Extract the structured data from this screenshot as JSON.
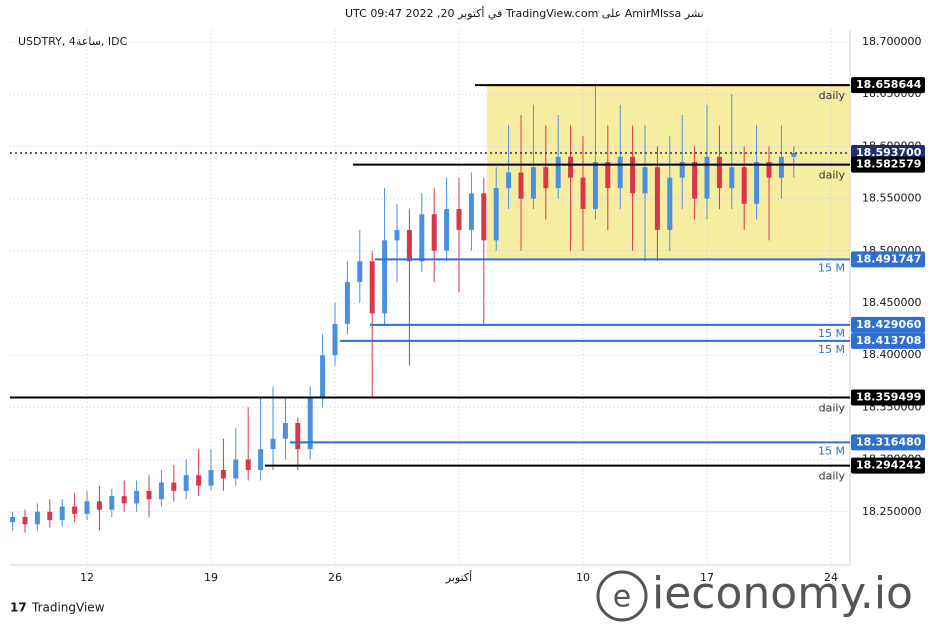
{
  "header": "نشر AmirMlssa على TradingView.com في أكتوبر 20, 2022 09:47 UTC",
  "symbol": "USDTRY, 4ساعة, IDC",
  "footer": "TradingView",
  "watermark": "ieconomy.io",
  "chart_data": {
    "type": "candlestick",
    "categories": [
      null,
      null,
      null,
      null,
      null,
      null,
      "12",
      null,
      null,
      null,
      null,
      null,
      null,
      null,
      null,
      null,
      "19",
      null,
      null,
      null,
      null,
      null,
      null,
      null,
      null,
      null,
      "26",
      null,
      null,
      null,
      null,
      null,
      null,
      null,
      null,
      null,
      "أكتوبر",
      null,
      null,
      null,
      null,
      null,
      null,
      null,
      null,
      null,
      "10",
      null,
      null,
      null,
      null,
      null,
      null,
      null,
      null,
      null,
      "17",
      null,
      null,
      null,
      null,
      null,
      null,
      null,
      null,
      null,
      "24",
      null
    ],
    "open": [
      18.24,
      18.245,
      18.238,
      18.25,
      18.242,
      18.255,
      18.248,
      18.26,
      18.252,
      18.265,
      18.258,
      18.27,
      18.262,
      18.278,
      18.27,
      18.285,
      18.275,
      18.29,
      18.282,
      18.3,
      18.29,
      18.31,
      18.32,
      18.335,
      18.31,
      18.36,
      18.4,
      18.43,
      18.47,
      18.49,
      18.44,
      18.51,
      18.52,
      18.49,
      18.535,
      18.5,
      18.54,
      18.52,
      18.555,
      18.51,
      18.56,
      18.575,
      18.55,
      18.58,
      18.56,
      18.59,
      18.57,
      18.54,
      18.585,
      18.56,
      18.59,
      18.555,
      18.58,
      18.52,
      18.57,
      18.585,
      18.55,
      18.59,
      18.56,
      18.58,
      18.545,
      18.585,
      18.57,
      18.59,
      null,
      null,
      null,
      null
    ],
    "high": [
      18.25,
      18.252,
      18.258,
      18.262,
      18.262,
      18.268,
      18.27,
      18.275,
      18.272,
      18.28,
      18.28,
      18.285,
      18.29,
      18.295,
      18.3,
      18.31,
      18.31,
      18.32,
      18.33,
      18.35,
      18.36,
      18.37,
      18.36,
      18.34,
      18.37,
      18.42,
      18.45,
      18.49,
      18.52,
      18.5,
      18.56,
      18.545,
      18.54,
      18.555,
      18.56,
      18.57,
      18.57,
      18.575,
      18.57,
      18.58,
      18.62,
      18.63,
      18.64,
      18.62,
      18.63,
      18.62,
      18.61,
      18.66,
      18.62,
      18.64,
      18.62,
      18.62,
      18.6,
      18.61,
      18.63,
      18.6,
      18.64,
      18.62,
      18.65,
      18.6,
      18.62,
      18.6,
      18.62,
      18.6,
      null,
      null,
      null,
      null
    ],
    "low": [
      18.232,
      18.23,
      18.232,
      18.235,
      18.236,
      18.24,
      18.242,
      18.232,
      18.245,
      18.25,
      18.25,
      18.245,
      18.255,
      18.26,
      18.262,
      18.265,
      18.27,
      18.27,
      18.275,
      18.28,
      18.28,
      18.29,
      18.3,
      18.29,
      18.3,
      18.35,
      18.39,
      18.42,
      18.45,
      18.36,
      18.43,
      18.47,
      18.39,
      18.48,
      18.47,
      18.49,
      18.46,
      18.5,
      18.43,
      18.5,
      18.54,
      18.5,
      18.54,
      18.53,
      18.55,
      18.5,
      18.5,
      18.53,
      18.52,
      18.54,
      18.5,
      18.49,
      18.49,
      18.5,
      18.54,
      18.53,
      18.53,
      18.54,
      18.54,
      18.52,
      18.53,
      18.51,
      18.55,
      18.57,
      null,
      null,
      null,
      null
    ],
    "close": [
      18.245,
      18.238,
      18.25,
      18.242,
      18.255,
      18.248,
      18.26,
      18.252,
      18.265,
      18.258,
      18.27,
      18.262,
      18.278,
      18.27,
      18.285,
      18.275,
      18.29,
      18.282,
      18.3,
      18.29,
      18.31,
      18.32,
      18.335,
      18.31,
      18.36,
      18.4,
      18.43,
      18.47,
      18.49,
      18.44,
      18.51,
      18.52,
      18.49,
      18.535,
      18.5,
      18.54,
      18.52,
      18.555,
      18.51,
      18.56,
      18.575,
      18.55,
      18.58,
      18.56,
      18.59,
      18.57,
      18.54,
      18.585,
      18.56,
      18.59,
      18.555,
      18.58,
      18.52,
      18.57,
      18.585,
      18.55,
      18.59,
      18.56,
      18.58,
      18.545,
      18.585,
      18.57,
      18.59,
      18.5937,
      null,
      null,
      null,
      null
    ],
    "up_color": "#4a8fe0",
    "down_color": "#d9364a",
    "ylim": [
      18.199,
      18.7115
    ],
    "yticks": [
      {
        "value": 18.25,
        "label": "18.250000"
      },
      {
        "value": 18.3,
        "label": "18.300000"
      },
      {
        "value": 18.35,
        "label": "18.350000"
      },
      {
        "value": 18.4,
        "label": "18.400000"
      },
      {
        "value": 18.45,
        "label": "18.450000"
      },
      {
        "value": 18.5,
        "label": "18.500000"
      },
      {
        "value": 18.55,
        "label": "18.550000"
      },
      {
        "value": 18.6,
        "label": "18.600000"
      },
      {
        "value": 18.65,
        "label": "18.650000"
      },
      {
        "value": 18.7,
        "label": "18.700000"
      }
    ],
    "grid": true,
    "levels": [
      {
        "price": 18.658644,
        "label": "18.658644",
        "tag": "daily",
        "color": "#000000"
      },
      {
        "price": 18.5937,
        "label": "18.593700",
        "color": "#1e2f6e",
        "style": "dotted"
      },
      {
        "price": 18.582579,
        "label": "18.582579",
        "tag": "daily",
        "color": "#000000"
      },
      {
        "price": 18.491747,
        "label": "18.491747",
        "tag": "15 M",
        "color": "#2f6fd0"
      },
      {
        "price": 18.42906,
        "label": "18.429060",
        "tag": "15 M",
        "color": "#2f6fd0"
      },
      {
        "price": 18.413708,
        "label": "18.413708",
        "tag": "15 M",
        "color": "#2f6fd0"
      },
      {
        "price": 18.359499,
        "label": "18.359499",
        "tag": "daily",
        "color": "#000000"
      },
      {
        "price": 18.31648,
        "label": "18.316480",
        "tag": "15 M",
        "color": "#2f6fd0"
      },
      {
        "price": 18.294242,
        "label": "18.294242",
        "tag": "daily",
        "color": "#000000"
      }
    ],
    "zone_color": "#f5e88a"
  }
}
